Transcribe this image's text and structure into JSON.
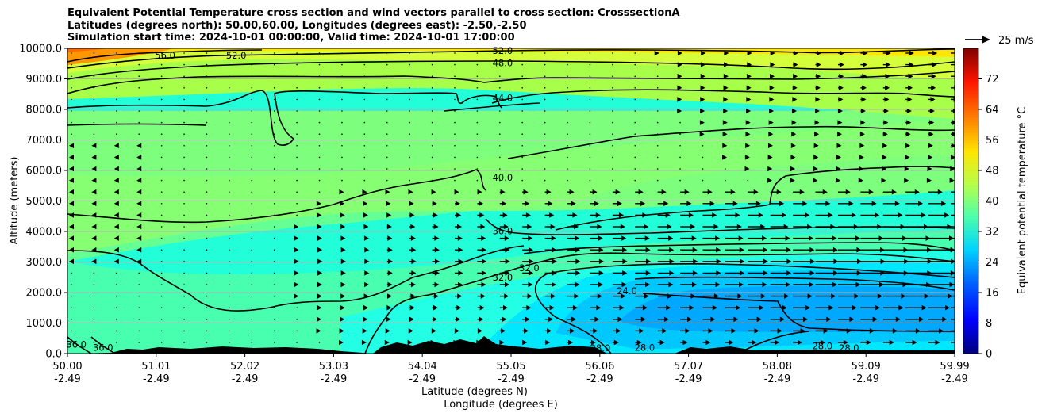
{
  "title_lines": [
    "Equivalent Potential Temperature cross section and wind vectors parallel to cross section: CrosssectionA",
    "Latitudes (degrees north): 50.00,60.00, Longitudes (degrees east): -2.50,-2.50",
    "Simulation start time: 2024-10-01 00:00:00, Valid time: 2024-10-01 17:00:00"
  ],
  "quiver_key_label": "25 m/s",
  "colorbar": {
    "label": "Equivalent potential temperature $^\\circ$C",
    "label_display": "Equivalent potential temperature °C",
    "ticks": [
      0,
      8,
      16,
      24,
      32,
      40,
      48,
      56,
      64,
      72
    ],
    "range": [
      0,
      80
    ]
  },
  "chart_data": {
    "type": "heatmap",
    "description_of_fields": "filled contours of equivalent potential temperature with line contours and wind vectors",
    "xlabel_lines": [
      "Latitude (degrees N)",
      "Longitude (degrees E)"
    ],
    "ylabel": "Altitude (meters)",
    "x_ticks": [
      {
        "lat": "50.00",
        "lon": "-2.49"
      },
      {
        "lat": "51.01",
        "lon": "-2.49"
      },
      {
        "lat": "52.02",
        "lon": "-2.49"
      },
      {
        "lat": "53.03",
        "lon": "-2.49"
      },
      {
        "lat": "54.04",
        "lon": "-2.49"
      },
      {
        "lat": "55.05",
        "lon": "-2.49"
      },
      {
        "lat": "56.06",
        "lon": "-2.49"
      },
      {
        "lat": "57.07",
        "lon": "-2.49"
      },
      {
        "lat": "58.08",
        "lon": "-2.49"
      },
      {
        "lat": "59.09",
        "lon": "-2.49"
      },
      {
        "lat": "59.99",
        "lon": "-2.49"
      }
    ],
    "xlim": [
      50.0,
      59.99
    ],
    "y_ticks": [
      "0.0",
      "1000.0",
      "2000.0",
      "3000.0",
      "4000.0",
      "5000.0",
      "6000.0",
      "7000.0",
      "8000.0",
      "9000.0",
      "10000.0"
    ],
    "ylim": [
      0,
      10000
    ],
    "grid": "horizontal",
    "contour_labels": [
      {
        "text": "56.0",
        "lat": 51.1,
        "alt": 9760
      },
      {
        "text": "52.0",
        "lat": 51.9,
        "alt": 9760
      },
      {
        "text": "52.0",
        "lat": 54.9,
        "alt": 9920
      },
      {
        "text": "48.0",
        "lat": 54.9,
        "alt": 9520
      },
      {
        "text": "44.0",
        "lat": 54.9,
        "alt": 8380
      },
      {
        "text": "40.0",
        "lat": 54.9,
        "alt": 5760
      },
      {
        "text": "36.0",
        "lat": 54.9,
        "alt": 4010
      },
      {
        "text": "32.0",
        "lat": 54.9,
        "alt": 2500
      },
      {
        "text": "32.0",
        "lat": 55.2,
        "alt": 2800
      },
      {
        "text": "24.0",
        "lat": 56.3,
        "alt": 2050
      },
      {
        "text": "36.0",
        "lat": 50.1,
        "alt": 300
      },
      {
        "text": "36.0",
        "lat": 50.4,
        "alt": 200
      },
      {
        "text": "28.0",
        "lat": 56.0,
        "alt": 180
      },
      {
        "text": "28.0",
        "lat": 56.5,
        "alt": 200
      },
      {
        "text": "28.0",
        "lat": 58.5,
        "alt": 250
      },
      {
        "text": "28.0",
        "lat": 58.8,
        "alt": 180
      }
    ]
  }
}
